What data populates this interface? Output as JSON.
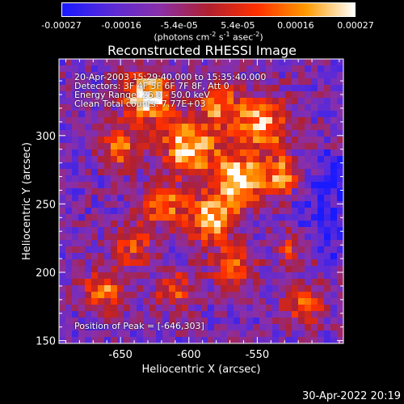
{
  "colorbar": {
    "tick_labels": [
      "-0.00027",
      "-0.00016",
      "-5.4e-05",
      "5.4e-05",
      "0.00016",
      "0.00027"
    ],
    "tick_values": [
      -0.00027,
      -0.00016,
      -5.4e-05,
      5.4e-05,
      0.00016,
      0.00027
    ],
    "range": [
      -0.00027,
      0.00027
    ],
    "units_prefix": "(photons cm",
    "units_exp1": "-2",
    "units_mid": " s",
    "units_exp2": "-1",
    "units_mid2": " asec",
    "units_exp3": "-2",
    "units_suffix": ")",
    "colors": [
      "#1a1aff",
      "#5a2ad8",
      "#8a2fa8",
      "#b02030",
      "#ff3000",
      "#ff9a00",
      "#ffffff"
    ]
  },
  "title": "Reconstructed RHESSI Image",
  "annotations": {
    "time_range": "20-Apr-2003 15:29:40.000 to 15:35:40.000",
    "detectors": "Detectors: 3F 4F 5F 6F 7F 8F, Att 0",
    "energy": "Energy Range: 25.0 - 50.0 keV",
    "method": "Clean     Total counts: 7.77E+03",
    "peak": "Position of Peak = [-646,303]"
  },
  "x_axis": {
    "label": "Heliocentric X (arcsec)",
    "range": [
      -695,
      -487
    ],
    "ticks": [
      -650,
      -600,
      -550
    ],
    "tick_labels": [
      "-650",
      "-600",
      "-550"
    ]
  },
  "y_axis": {
    "label": "Heliocentric Y (arcsec)",
    "range": [
      148,
      356
    ],
    "ticks": [
      150,
      200,
      250,
      300
    ],
    "tick_labels": [
      "150",
      "200",
      "250",
      "300"
    ]
  },
  "peak": {
    "x": -646,
    "y": 303
  },
  "date_stamp": "30-Apr-2022 20:19"
}
